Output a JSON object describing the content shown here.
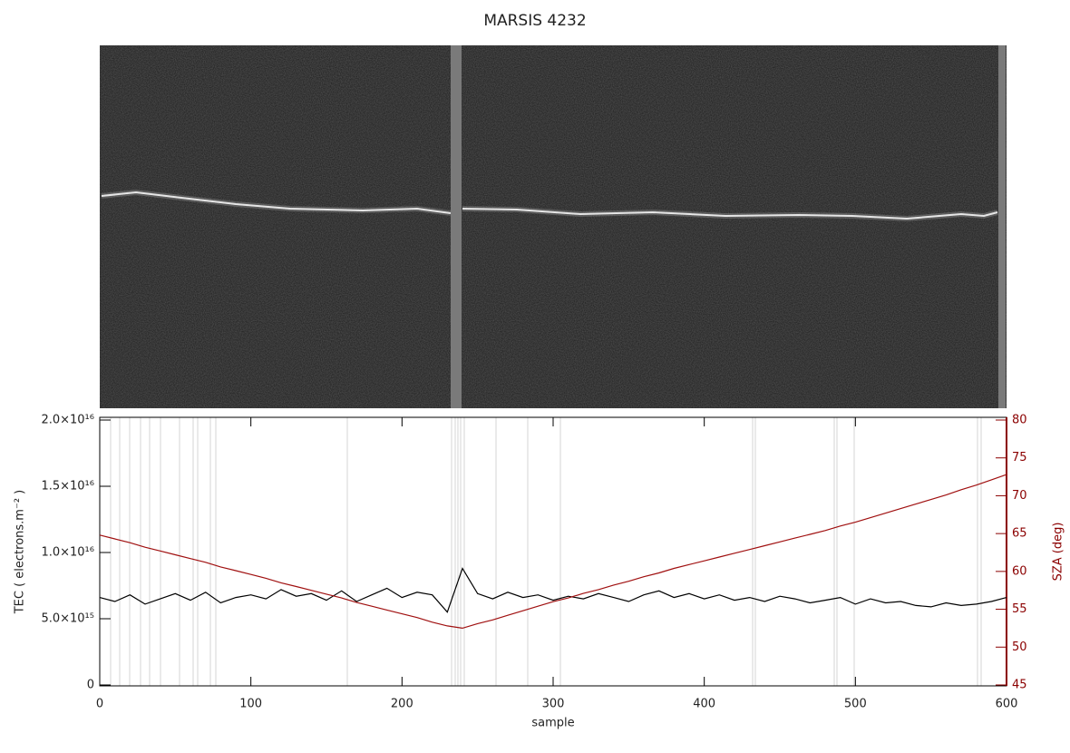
{
  "chart_data": {
    "type": "line",
    "title": "MARSIS 4232",
    "x_label": "sample",
    "y_label": "TEC ( electrons.m⁻² )",
    "y2_label": "SZA (deg)",
    "xlim": [
      0,
      600
    ],
    "xticks": [
      0,
      100,
      200,
      300,
      400,
      500,
      600
    ],
    "ylim": [
      0,
      2e+16
    ],
    "yticks": [
      0,
      {
        "value": 5000000000000000.0,
        "label": "5.0×10¹⁵"
      },
      {
        "value": 1e+16,
        "label": "1.0×10¹⁶"
      },
      {
        "value": 1.5e+16,
        "label": "1.5×10¹⁶"
      },
      {
        "value": 2e+16,
        "label": "2.0×10¹⁶"
      }
    ],
    "y2lim": [
      45,
      80
    ],
    "y2ticks": [
      45,
      50,
      55,
      60,
      65,
      70,
      75,
      80
    ],
    "y2_color": "#8b0000",
    "x": [
      0,
      10,
      20,
      30,
      40,
      50,
      60,
      70,
      80,
      90,
      100,
      110,
      120,
      130,
      140,
      150,
      160,
      170,
      180,
      190,
      200,
      210,
      220,
      230,
      240,
      250,
      260,
      270,
      280,
      290,
      300,
      310,
      320,
      330,
      340,
      350,
      360,
      370,
      380,
      390,
      400,
      410,
      420,
      430,
      440,
      450,
      460,
      470,
      480,
      490,
      500,
      510,
      520,
      530,
      540,
      550,
      560,
      570,
      580,
      590,
      600
    ],
    "series": [
      {
        "color": "#000000",
        "values": [
          6600000000000000.0,
          6300000000000000.0,
          6800000000000000.0,
          6100000000000000.0,
          6500000000000000.0,
          6900000000000000.0,
          6400000000000000.0,
          7000000000000000.0,
          6200000000000000.0,
          6600000000000000.0,
          6800000000000000.0,
          6500000000000000.0,
          7200000000000000.0,
          6700000000000000.0,
          6900000000000000.0,
          6400000000000000.0,
          7100000000000000.0,
          6300000000000000.0,
          6800000000000000.0,
          7300000000000000.0,
          6600000000000000.0,
          7000000000000000.0,
          6800000000000000.0,
          5500000000000000.0,
          8800000000000000.0,
          6900000000000000.0,
          6500000000000000.0,
          7000000000000000.0,
          6600000000000000.0,
          6800000000000000.0,
          6400000000000000.0,
          6700000000000000.0,
          6500000000000000.0,
          6900000000000000.0,
          6600000000000000.0,
          6300000000000000.0,
          6800000000000000.0,
          7100000000000000.0,
          6600000000000000.0,
          6900000000000000.0,
          6500000000000000.0,
          6800000000000000.0,
          6400000000000000.0,
          6600000000000000.0,
          6300000000000000.0,
          6700000000000000.0,
          6500000000000000.0,
          6200000000000000.0,
          6400000000000000.0,
          6600000000000000.0,
          6100000000000000.0,
          6500000000000000.0,
          6200000000000000.0,
          6300000000000000.0,
          6000000000000000.0,
          5900000000000000.0,
          6200000000000000.0,
          6000000000000000.0,
          6100000000000000.0,
          6300000000000000.0,
          6600000000000000.0
        ]
      },
      {
        "color": "#a01010",
        "axis": "y2",
        "values": [
          64.8,
          64.3,
          63.8,
          63.2,
          62.7,
          62.2,
          61.7,
          61.2,
          60.6,
          60.1,
          59.6,
          59.1,
          58.5,
          58.0,
          57.5,
          57.0,
          56.5,
          55.9,
          55.4,
          54.9,
          54.4,
          53.9,
          53.3,
          52.8,
          52.5,
          53.1,
          53.6,
          54.2,
          54.8,
          55.4,
          56.0,
          56.5,
          57.1,
          57.6,
          58.2,
          58.7,
          59.3,
          59.8,
          60.4,
          60.9,
          61.4,
          61.9,
          62.4,
          62.9,
          63.4,
          63.9,
          64.4,
          64.9,
          65.4,
          66.0,
          66.5,
          67.1,
          67.7,
          68.3,
          68.9,
          69.5,
          70.1,
          70.8,
          71.4,
          72.1,
          72.8
        ]
      }
    ]
  }
}
